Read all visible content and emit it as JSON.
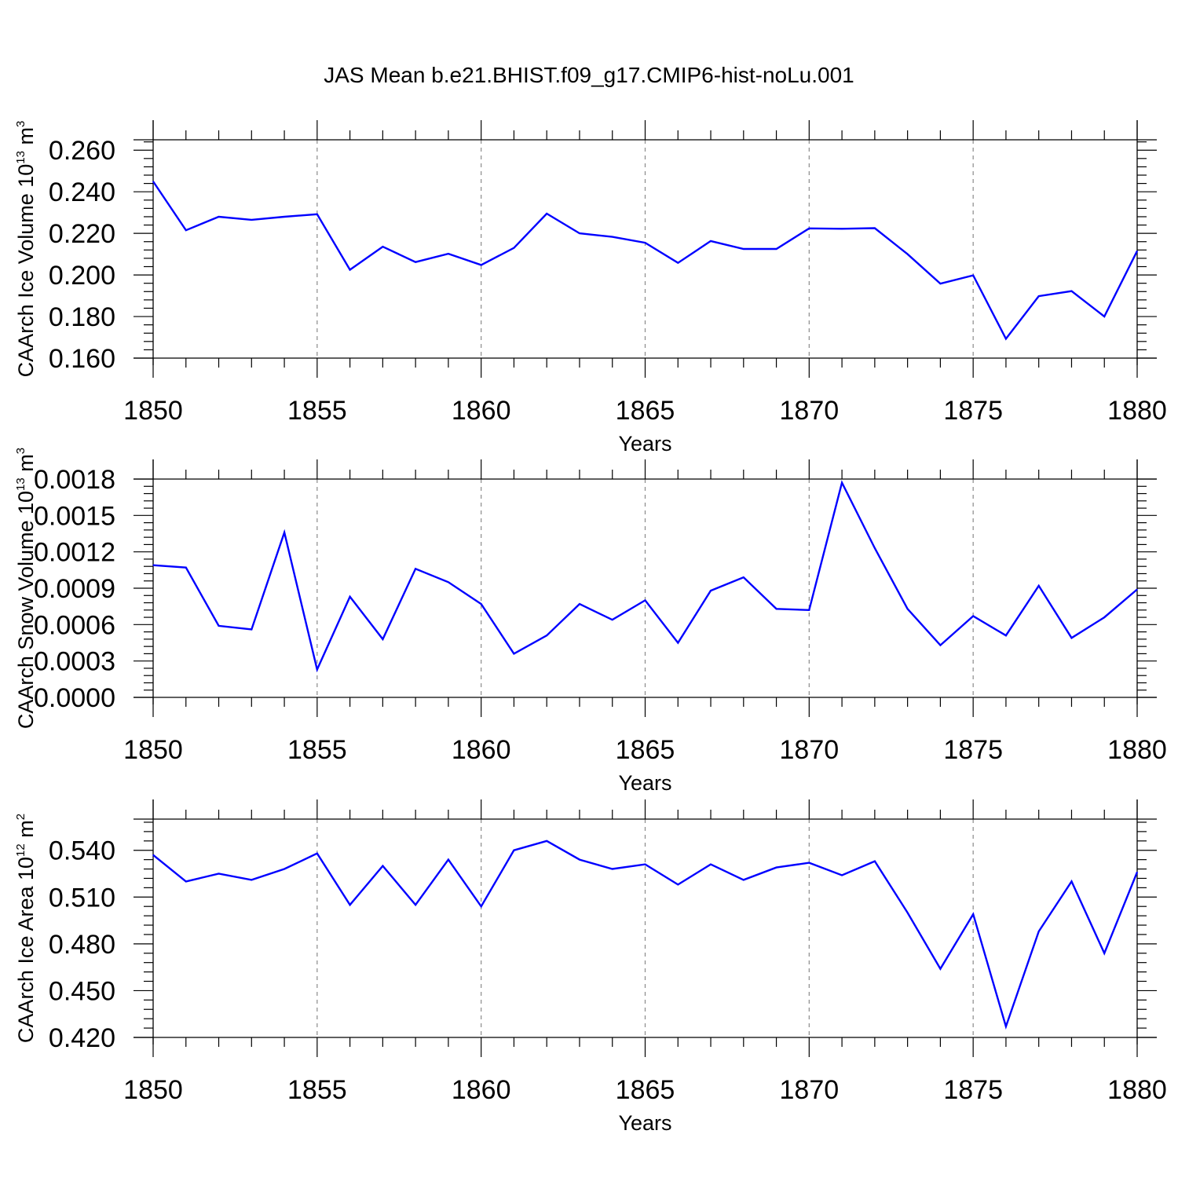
{
  "title": "JAS Mean b.e21.BHIST.f09_g17.CMIP6-hist-noLu.001",
  "chart_data": [
    {
      "type": "line",
      "ylabel": {
        "text": "CAArch Ice Volume 10",
        "exp": "13",
        "unit": " m",
        "unit_exp": "3"
      },
      "xlabel": "Years",
      "xlim": [
        1850,
        1880
      ],
      "ylim": [
        0.16,
        0.265
      ],
      "xticks": [
        "1850",
        "1855",
        "1860",
        "1865",
        "1870",
        "1875",
        "1880"
      ],
      "yticks": [
        "0.160",
        "0.180",
        "0.200",
        "0.220",
        "0.240",
        "0.260"
      ],
      "line_color": "#0000ff",
      "grid": "vertical dashed at major x ticks",
      "x": [
        1850,
        1851,
        1852,
        1853,
        1854,
        1855,
        1856,
        1857,
        1858,
        1859,
        1860,
        1861,
        1862,
        1863,
        1864,
        1865,
        1866,
        1867,
        1868,
        1869,
        1870,
        1871,
        1872,
        1873,
        1874,
        1875,
        1876,
        1877,
        1878,
        1879,
        1880
      ],
      "y": [
        0.245,
        0.2215,
        0.228,
        0.2265,
        0.228,
        0.2292,
        0.2025,
        0.2136,
        0.2062,
        0.2102,
        0.2048,
        0.213,
        0.2295,
        0.22,
        0.2183,
        0.2155,
        0.2058,
        0.2163,
        0.2125,
        0.2125,
        0.2224,
        0.2222,
        0.2225,
        0.21,
        0.1958,
        0.1998,
        0.1693,
        0.1898,
        0.1922,
        0.18,
        0.2115
      ]
    },
    {
      "type": "line",
      "ylabel": {
        "text": "CAArch Snow Volume 10",
        "exp": "13",
        "unit": " m",
        "unit_exp": "3"
      },
      "xlabel": "Years",
      "xlim": [
        1850,
        1880
      ],
      "ylim": [
        0.0,
        0.0018
      ],
      "xticks": [
        "1850",
        "1855",
        "1860",
        "1865",
        "1870",
        "1875",
        "1880"
      ],
      "yticks": [
        "0.0000",
        "0.0003",
        "0.0006",
        "0.0009",
        "0.0012",
        "0.0015",
        "0.0018"
      ],
      "line_color": "#0000ff",
      "grid": "vertical dashed at major x ticks",
      "x": [
        1850,
        1851,
        1852,
        1853,
        1854,
        1855,
        1856,
        1857,
        1858,
        1859,
        1860,
        1861,
        1862,
        1863,
        1864,
        1865,
        1866,
        1867,
        1868,
        1869,
        1870,
        1871,
        1872,
        1873,
        1874,
        1875,
        1876,
        1877,
        1878,
        1879,
        1880
      ],
      "y": [
        0.00109,
        0.00107,
        0.00059,
        0.00056,
        0.00136,
        0.00023,
        0.00083,
        0.00048,
        0.00106,
        0.00095,
        0.00077,
        0.00036,
        0.00051,
        0.00077,
        0.00064,
        0.0008,
        0.00045,
        0.00088,
        0.00099,
        0.00073,
        0.00072,
        0.00177,
        0.00123,
        0.00073,
        0.00043,
        0.00067,
        0.00051,
        0.00092,
        0.00049,
        0.00066,
        0.00089
      ]
    },
    {
      "type": "line",
      "ylabel": {
        "text": "CAArch Ice Area 10",
        "exp": "12",
        "unit": " m",
        "unit_exp": "2"
      },
      "xlabel": "Years",
      "xlim": [
        1850,
        1880
      ],
      "ylim": [
        0.42,
        0.56
      ],
      "xticks": [
        "1850",
        "1855",
        "1860",
        "1865",
        "1870",
        "1875",
        "1880"
      ],
      "yticks": [
        "0.420",
        "0.450",
        "0.480",
        "0.510",
        "0.540"
      ],
      "line_color": "#0000ff",
      "grid": "vertical dashed at major x ticks",
      "x": [
        1850,
        1851,
        1852,
        1853,
        1854,
        1855,
        1856,
        1857,
        1858,
        1859,
        1860,
        1861,
        1862,
        1863,
        1864,
        1865,
        1866,
        1867,
        1868,
        1869,
        1870,
        1871,
        1872,
        1873,
        1874,
        1875,
        1876,
        1877,
        1878,
        1879,
        1880
      ],
      "y": [
        0.537,
        0.52,
        0.525,
        0.521,
        0.528,
        0.538,
        0.505,
        0.53,
        0.505,
        0.534,
        0.504,
        0.54,
        0.546,
        0.534,
        0.528,
        0.531,
        0.518,
        0.531,
        0.521,
        0.529,
        0.532,
        0.524,
        0.533,
        0.5,
        0.464,
        0.499,
        0.427,
        0.488,
        0.52,
        0.474,
        0.526
      ]
    }
  ]
}
